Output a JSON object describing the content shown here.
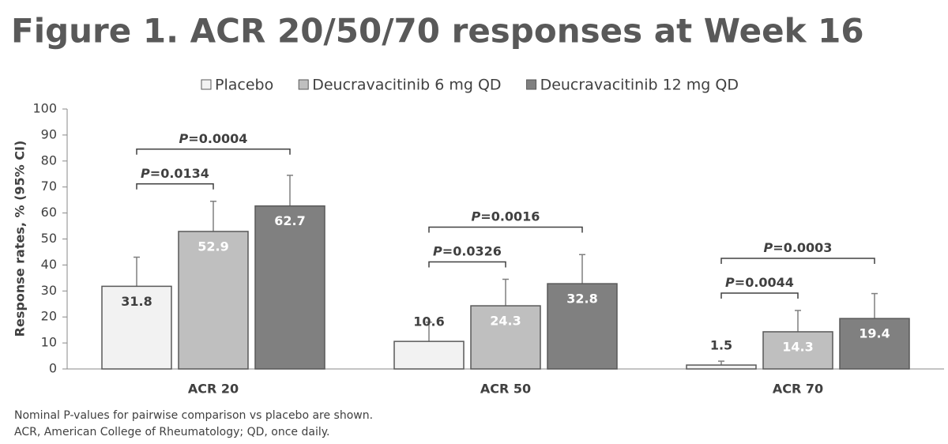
{
  "chart_data": {
    "type": "bar",
    "title": "Figure 1. ACR 20/50/70 responses at Week 16",
    "y_label": "Response rates, % (95% CI)",
    "categories": [
      "ACR 20",
      "ACR 50",
      "ACR 70"
    ],
    "series": [
      {
        "name": "Placebo",
        "color": "#f2f2f2",
        "values": [
          31.8,
          10.6,
          1.5
        ],
        "errors": [
          11.2,
          7.4,
          1.5
        ]
      },
      {
        "name": "Deucravacitinib 6 mg QD",
        "color": "#bfbfbf",
        "values": [
          52.9,
          24.3,
          14.3
        ],
        "errors": [
          11.6,
          10.2,
          8.2
        ]
      },
      {
        "name": "Deucravacitinib 12 mg QD",
        "color": "#808080",
        "values": [
          62.7,
          32.8,
          19.4
        ],
        "errors": [
          11.8,
          11.2,
          9.6
        ]
      }
    ],
    "ylim": [
      0,
      100
    ],
    "yticks": [
      0,
      10,
      20,
      30,
      40,
      50,
      60,
      70,
      80,
      90,
      100
    ],
    "grid": false,
    "legend": "top",
    "comparisons": [
      {
        "category": 0,
        "from": 0,
        "to": 1,
        "label": "P=0.0134"
      },
      {
        "category": 0,
        "from": 0,
        "to": 2,
        "label": "P=0.0004"
      },
      {
        "category": 1,
        "from": 0,
        "to": 1,
        "label": "P=0.0326"
      },
      {
        "category": 1,
        "from": 0,
        "to": 2,
        "label": "P=0.0016"
      },
      {
        "category": 2,
        "from": 0,
        "to": 1,
        "label": "P=0.0044"
      },
      {
        "category": 2,
        "from": 0,
        "to": 2,
        "label": "P=0.0003"
      }
    ],
    "footnotes": [
      "Nominal P-values for pairwise comparison vs placebo are shown.",
      "ACR, American College of Rheumatology; QD, once daily."
    ]
  }
}
